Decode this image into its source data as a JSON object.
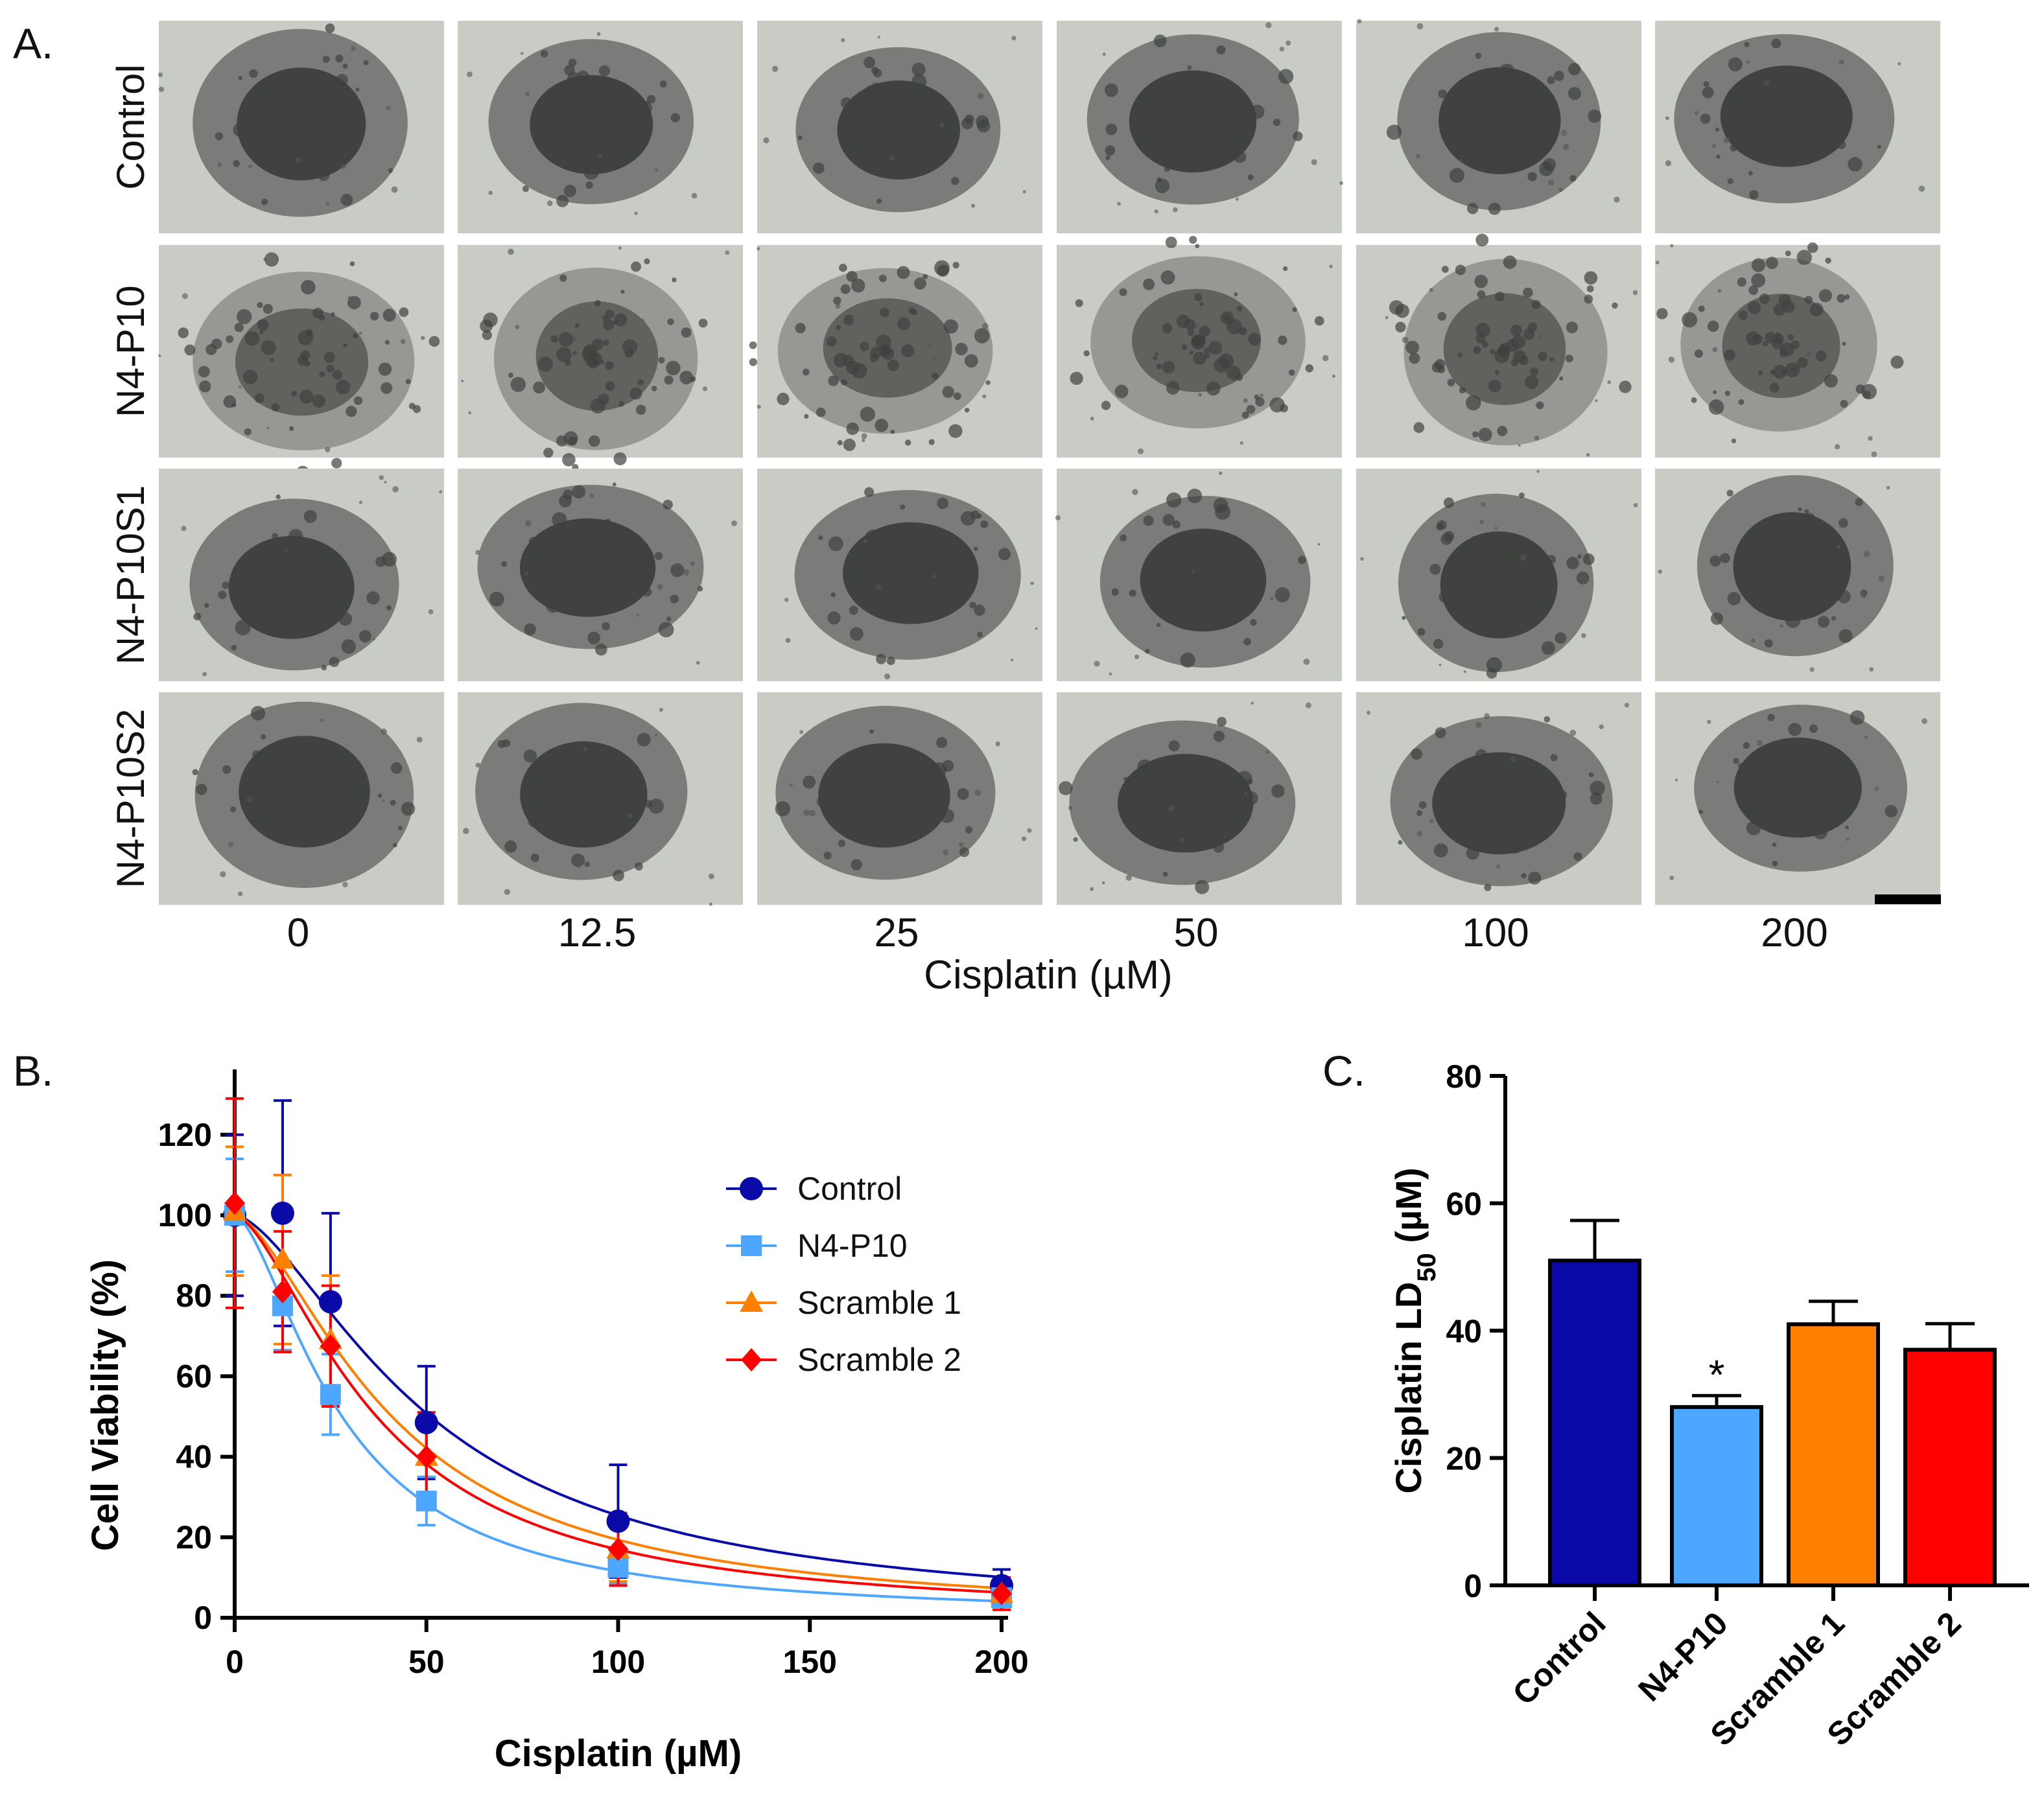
{
  "panel_a": {
    "label": "A.",
    "row_labels": [
      "Control",
      "N4-P10",
      "N4-P10S1",
      "N4-P10S2"
    ],
    "col_labels": [
      "0",
      "12.5",
      "25",
      "50",
      "100",
      "200"
    ],
    "xlabel": "Cisplatin (µM)"
  },
  "panel_b": {
    "label": "B."
  },
  "panel_c": {
    "label": "C.",
    "significance": "*"
  },
  "colors": {
    "Control": "#0a0aa8",
    "N4-P10": "#4da6ff",
    "Scramble 1": "#ff8000",
    "Scramble 2": "#ff0000"
  },
  "chart_data": [
    {
      "type": "line",
      "title": "",
      "xlabel": "Cisplatin (µM)",
      "ylabel": "Cell Viability (%)",
      "xlim": [
        0,
        200
      ],
      "ylim": [
        0,
        130
      ],
      "xticks": [
        "0",
        "50",
        "100",
        "150",
        "200"
      ],
      "yticks": [
        "0",
        "20",
        "40",
        "60",
        "80",
        "100",
        "120"
      ],
      "x": [
        0,
        12.5,
        25,
        50,
        100,
        200
      ],
      "legend_position": "top-right",
      "series": [
        {
          "name": "Control",
          "marker": "circle",
          "values": [
            100,
            100.5,
            78.5,
            48.5,
            24,
            8
          ],
          "errors": [
            20,
            28,
            22,
            14,
            14,
            4
          ],
          "ld50": 51
        },
        {
          "name": "N4-P10",
          "marker": "square",
          "values": [
            100,
            77.5,
            55.5,
            29,
            12.5,
            5
          ],
          "errors": [
            14,
            11,
            10,
            6,
            4,
            3
          ],
          "ld50": 28
        },
        {
          "name": "Scramble 1",
          "marker": "triangle",
          "values": [
            101,
            89,
            69,
            40,
            17,
            6
          ],
          "errors": [
            16,
            21,
            16,
            11,
            8,
            4
          ],
          "ld50": 41
        },
        {
          "name": "Scramble 2",
          "marker": "diamond",
          "values": [
            103,
            81,
            67.5,
            40,
            17,
            6
          ],
          "errors": [
            26,
            15,
            15,
            11,
            9,
            4
          ],
          "ld50": 37
        }
      ]
    },
    {
      "type": "bar",
      "title": "",
      "xlabel": "",
      "ylabel": "Cisplatin LD",
      "ylabel_sub": "50",
      "ylabel_unit": " (µM)",
      "ylim": [
        0,
        80
      ],
      "yticks": [
        "0",
        "20",
        "40",
        "60",
        "80"
      ],
      "categories": [
        "Control",
        "N4-P10",
        "Scramble 1",
        "Scramble 2"
      ],
      "values": [
        51,
        28,
        41,
        37
      ],
      "errors": [
        6.3,
        1.8,
        3.6,
        4.1
      ]
    }
  ]
}
